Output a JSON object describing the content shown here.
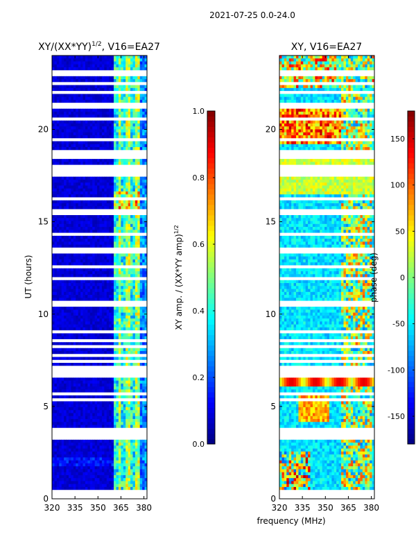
{
  "suptitle": "2021-07-25 0.0-24.0",
  "chart_data": [
    {
      "type": "heatmap",
      "title": "XY/(XX*YY)",
      "title_sup": "1/2",
      "title_suffix": ", V16=EA27",
      "xlabel": "",
      "ylabel": "UT (hours)",
      "xlim": [
        320,
        382
      ],
      "ylim": [
        0,
        24
      ],
      "xticks": [
        320,
        335,
        350,
        365,
        380
      ],
      "yticks": [
        0,
        5,
        10,
        15,
        20
      ],
      "colormap": "jet",
      "colorbar": {
        "label": "XY amp. / (XX*YY amp)",
        "label_sup": "1/2",
        "range": [
          0.0,
          1.0
        ],
        "ticks": [
          "0.0",
          "0.2",
          "0.4",
          "0.6",
          "0.8",
          "1.0"
        ]
      }
    },
    {
      "type": "heatmap",
      "title": "XY, V16=EA27",
      "xlabel": "frequency (MHz)",
      "ylabel": "",
      "xlim": [
        320,
        382
      ],
      "ylim": [
        0,
        24
      ],
      "xticks": [
        320,
        335,
        350,
        365,
        380
      ],
      "yticks": [
        0,
        5,
        10,
        15,
        20
      ],
      "colormap": "jet",
      "colorbar": {
        "label": "phase (deg)",
        "range": [
          -180,
          180
        ],
        "ticks": [
          "-150",
          "-100",
          "-50",
          "0",
          "50",
          "100",
          "150"
        ]
      }
    }
  ],
  "flagged_hours": [
    0.05,
    0.2,
    0.35,
    3.25,
    3.55,
    3.7,
    5.4,
    5.65,
    6.7,
    6.85,
    7.15,
    7.5,
    7.75,
    8.2,
    8.5,
    9.0,
    10.45,
    10.6,
    11.9,
    12.6,
    13.35,
    13.5,
    14.3,
    15.4,
    15.55,
    16.2,
    17.5,
    17.7,
    17.85,
    18.05,
    18.4,
    18.65,
    18.8,
    19.45,
    20.6,
    21.2,
    21.4,
    21.95,
    22.4,
    22.95,
    23.05
  ],
  "flagged_bands": [
    [
      3.42,
      3.62
    ],
    [
      6.78,
      6.95
    ],
    [
      10.48,
      10.63
    ],
    [
      13.38,
      13.55
    ],
    [
      15.38,
      15.6
    ],
    [
      18.58,
      18.82
    ],
    [
      22.95,
      23.2
    ]
  ]
}
